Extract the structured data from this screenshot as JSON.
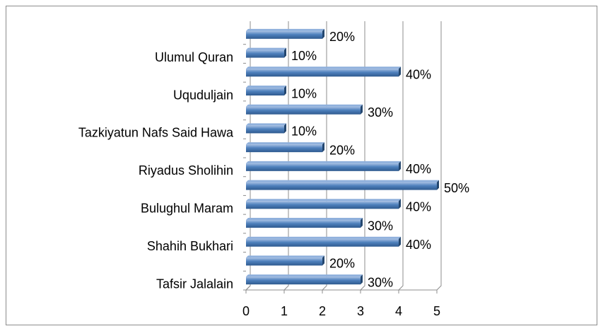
{
  "chart_data": {
    "type": "bar",
    "orientation": "horizontal",
    "three_d": true,
    "categories": [
      "Tafsir Jalalain",
      null,
      "Shahih Bukhari",
      null,
      "Bulughul Maram",
      null,
      "Riyadus Sholihin",
      null,
      "Tazkiyatun Nafs Said Hawa",
      null,
      "Uquduljain",
      null,
      "Ulumul Quran",
      null
    ],
    "values": [
      3,
      2,
      4,
      3,
      4,
      5,
      4,
      2,
      1,
      3,
      1,
      4,
      1,
      2
    ],
    "value_labels": [
      "30%",
      "20%",
      "40%",
      "30%",
      "40%",
      "50%",
      "40%",
      "20%",
      "10%",
      "30%",
      "10%",
      "40%",
      "10%",
      "20%"
    ],
    "color": "#4f81bd",
    "xlim": [
      0,
      5
    ],
    "xticks": [
      0,
      1,
      2,
      3,
      4,
      5
    ],
    "grid": true
  }
}
